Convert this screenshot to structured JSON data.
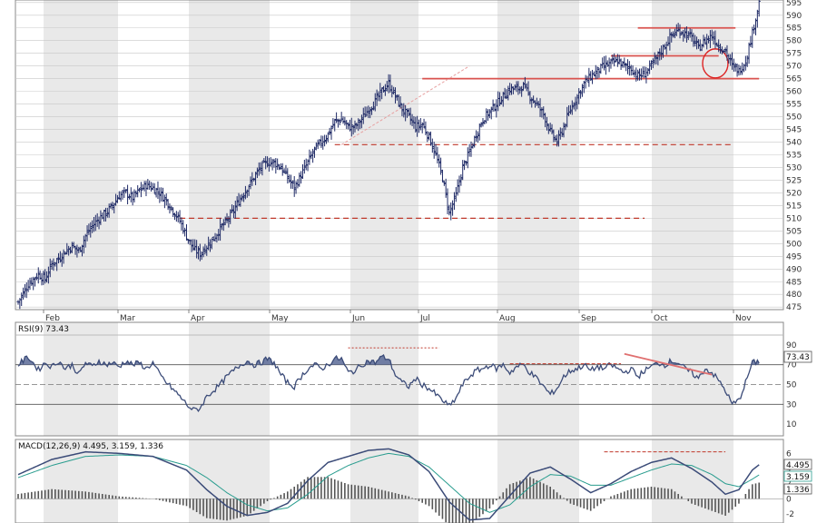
{
  "colors": {
    "bar": "#1f2a66",
    "line": "#3b4b78",
    "rsi_fill": "#5a6a96",
    "signal": "#2a9d8f",
    "level": "#d9534f",
    "dashed": "#c0392b",
    "grid": "#c8c8c8",
    "band": "#e9e9e9"
  },
  "chart_data": [
    {
      "type": "ohlc",
      "title": "",
      "x_month_labels": [
        "Feb",
        "Mar",
        "Apr",
        "May",
        "Jun",
        "Jul",
        "Aug",
        "Sep",
        "Oct",
        "Nov"
      ],
      "y_ticks": [
        475,
        480,
        485,
        490,
        495,
        500,
        505,
        510,
        515,
        520,
        525,
        530,
        535,
        540,
        545,
        550,
        555,
        560,
        565,
        570,
        575,
        580,
        585,
        590,
        595
      ],
      "ylim": [
        474,
        596
      ],
      "close_series": [
        [
          0,
          477
        ],
        [
          6,
          484
        ],
        [
          12,
          488
        ],
        [
          16,
          486
        ],
        [
          20,
          492
        ],
        [
          24,
          494
        ],
        [
          28,
          497
        ],
        [
          32,
          499
        ],
        [
          36,
          497
        ],
        [
          40,
          503
        ],
        [
          44,
          507
        ],
        [
          48,
          510
        ],
        [
          52,
          512
        ],
        [
          56,
          515
        ],
        [
          60,
          519
        ],
        [
          64,
          520
        ],
        [
          68,
          518
        ],
        [
          72,
          521
        ],
        [
          76,
          523
        ],
        [
          80,
          522
        ],
        [
          84,
          520
        ],
        [
          88,
          517
        ],
        [
          92,
          513
        ],
        [
          96,
          509
        ],
        [
          100,
          503
        ],
        [
          104,
          498
        ],
        [
          108,
          496
        ],
        [
          112,
          499
        ],
        [
          116,
          502
        ],
        [
          120,
          506
        ],
        [
          124,
          509
        ],
        [
          128,
          513
        ],
        [
          132,
          518
        ],
        [
          136,
          522
        ],
        [
          140,
          526
        ],
        [
          144,
          530
        ],
        [
          148,
          532
        ],
        [
          152,
          532
        ],
        [
          156,
          530
        ],
        [
          160,
          526
        ],
        [
          164,
          522
        ],
        [
          168,
          527
        ],
        [
          172,
          532
        ],
        [
          176,
          537
        ],
        [
          180,
          540
        ],
        [
          184,
          543
        ],
        [
          188,
          548
        ],
        [
          192,
          549
        ],
        [
          196,
          546
        ],
        [
          200,
          546
        ],
        [
          204,
          549
        ],
        [
          208,
          553
        ],
        [
          212,
          556
        ],
        [
          216,
          560
        ],
        [
          220,
          563
        ],
        [
          224,
          558
        ],
        [
          228,
          553
        ],
        [
          232,
          550
        ],
        [
          236,
          546
        ],
        [
          240,
          547
        ],
        [
          244,
          542
        ],
        [
          248,
          535
        ],
        [
          252,
          526
        ],
        [
          256,
          512
        ],
        [
          260,
          519
        ],
        [
          264,
          530
        ],
        [
          268,
          536
        ],
        [
          272,
          543
        ],
        [
          276,
          549
        ],
        [
          280,
          552
        ],
        [
          284,
          555
        ],
        [
          288,
          558
        ],
        [
          292,
          561
        ],
        [
          296,
          561
        ],
        [
          300,
          562
        ],
        [
          304,
          558
        ],
        [
          308,
          555
        ],
        [
          312,
          551
        ],
        [
          316,
          544
        ],
        [
          320,
          540
        ],
        [
          324,
          546
        ],
        [
          328,
          553
        ],
        [
          332,
          558
        ],
        [
          336,
          563
        ],
        [
          340,
          566
        ],
        [
          344,
          568
        ],
        [
          348,
          570
        ],
        [
          352,
          571
        ],
        [
          356,
          572
        ],
        [
          360,
          570
        ],
        [
          364,
          569
        ],
        [
          368,
          566
        ],
        [
          372,
          567
        ],
        [
          376,
          570
        ],
        [
          380,
          574
        ],
        [
          384,
          578
        ],
        [
          388,
          582
        ],
        [
          392,
          584
        ],
        [
          396,
          583
        ],
        [
          400,
          581
        ],
        [
          404,
          577
        ],
        [
          408,
          580
        ],
        [
          412,
          582
        ],
        [
          416,
          578
        ],
        [
          420,
          576
        ],
        [
          424,
          570
        ],
        [
          428,
          568
        ],
        [
          432,
          572
        ],
        [
          436,
          583
        ],
        [
          440,
          595
        ]
      ],
      "horizontal_levels": [
        {
          "value": 565,
          "x_range": [
            240,
            440
          ],
          "style": "solid"
        },
        {
          "value": 574,
          "x_range": [
            352,
            416
          ],
          "style": "solid"
        },
        {
          "value": 585,
          "x_range": [
            368,
            426
          ],
          "style": "solid"
        },
        {
          "value": 539,
          "x_range": [
            188,
            424
          ],
          "style": "dashed"
        },
        {
          "value": 510,
          "x_range": [
            96,
            372
          ],
          "style": "dashed"
        }
      ],
      "trendline": {
        "from": [
          192,
          539
        ],
        "to": [
          268,
          570
        ],
        "style": "dashed"
      },
      "circle_highlight": {
        "x": 414,
        "value": 571
      }
    },
    {
      "type": "line",
      "title": "RSI(9) 73.43",
      "series": [
        {
          "name": "RSI(9)",
          "last": "73.43"
        }
      ],
      "y_ticks": [
        10,
        30,
        50,
        70,
        90
      ],
      "ylim": [
        0,
        100
      ],
      "levels": [
        30,
        70
      ],
      "midline": 50,
      "value_box": "73.43",
      "values": [
        [
          0,
          70
        ],
        [
          6,
          78
        ],
        [
          12,
          65
        ],
        [
          16,
          72
        ],
        [
          20,
          68
        ],
        [
          24,
          74
        ],
        [
          28,
          66
        ],
        [
          32,
          70
        ],
        [
          36,
          60
        ],
        [
          40,
          72
        ],
        [
          44,
          68
        ],
        [
          48,
          74
        ],
        [
          52,
          70
        ],
        [
          56,
          72
        ],
        [
          60,
          68
        ],
        [
          64,
          74
        ],
        [
          68,
          70
        ],
        [
          72,
          72
        ],
        [
          76,
          66
        ],
        [
          80,
          72
        ],
        [
          84,
          60
        ],
        [
          88,
          52
        ],
        [
          92,
          45
        ],
        [
          96,
          38
        ],
        [
          100,
          30
        ],
        [
          104,
          24
        ],
        [
          108,
          26
        ],
        [
          112,
          38
        ],
        [
          116,
          44
        ],
        [
          120,
          50
        ],
        [
          124,
          58
        ],
        [
          128,
          64
        ],
        [
          132,
          70
        ],
        [
          136,
          74
        ],
        [
          140,
          70
        ],
        [
          144,
          72
        ],
        [
          148,
          76
        ],
        [
          152,
          72
        ],
        [
          156,
          60
        ],
        [
          160,
          52
        ],
        [
          164,
          48
        ],
        [
          168,
          58
        ],
        [
          172,
          66
        ],
        [
          176,
          70
        ],
        [
          180,
          66
        ],
        [
          184,
          70
        ],
        [
          188,
          76
        ],
        [
          192,
          76
        ],
        [
          196,
          62
        ],
        [
          200,
          64
        ],
        [
          204,
          70
        ],
        [
          208,
          74
        ],
        [
          212,
          72
        ],
        [
          216,
          78
        ],
        [
          220,
          76
        ],
        [
          224,
          60
        ],
        [
          228,
          52
        ],
        [
          232,
          48
        ],
        [
          236,
          56
        ],
        [
          240,
          50
        ],
        [
          244,
          46
        ],
        [
          248,
          40
        ],
        [
          252,
          34
        ],
        [
          256,
          28
        ],
        [
          260,
          36
        ],
        [
          264,
          50
        ],
        [
          268,
          58
        ],
        [
          272,
          64
        ],
        [
          276,
          66
        ],
        [
          280,
          70
        ],
        [
          284,
          66
        ],
        [
          288,
          70
        ],
        [
          292,
          62
        ],
        [
          296,
          68
        ],
        [
          300,
          70
        ],
        [
          304,
          62
        ],
        [
          308,
          56
        ],
        [
          312,
          48
        ],
        [
          316,
          40
        ],
        [
          320,
          46
        ],
        [
          324,
          58
        ],
        [
          328,
          64
        ],
        [
          332,
          66
        ],
        [
          336,
          70
        ],
        [
          340,
          64
        ],
        [
          344,
          68
        ],
        [
          348,
          66
        ],
        [
          352,
          70
        ],
        [
          356,
          66
        ],
        [
          360,
          62
        ],
        [
          364,
          66
        ],
        [
          368,
          58
        ],
        [
          372,
          64
        ],
        [
          376,
          68
        ],
        [
          380,
          72
        ],
        [
          384,
          70
        ],
        [
          388,
          74
        ],
        [
          392,
          72
        ],
        [
          396,
          66
        ],
        [
          400,
          62
        ],
        [
          404,
          56
        ],
        [
          408,
          66
        ],
        [
          412,
          62
        ],
        [
          416,
          54
        ],
        [
          420,
          44
        ],
        [
          424,
          30
        ],
        [
          428,
          34
        ],
        [
          432,
          52
        ],
        [
          436,
          72
        ],
        [
          440,
          73.43
        ]
      ],
      "annotation_lines": [
        {
          "from": [
            196,
            87
          ],
          "to": [
            250,
            87
          ],
          "style": "dashed"
        },
        {
          "from": [
            292,
            71
          ],
          "to": [
            358,
            71
          ],
          "style": "dashed"
        },
        {
          "from": [
            360,
            81
          ],
          "to": [
            412,
            60
          ],
          "style": "solid"
        }
      ]
    },
    {
      "type": "line",
      "title": "MACD(12,26,9) 4.495, 3.159, 1.336",
      "series": [
        {
          "name": "MACD(12,26,9)",
          "last": "4.495"
        },
        {
          "name": "Signal",
          "last": "3.159"
        },
        {
          "name": "Histogram",
          "last": "1.336"
        }
      ],
      "y_ticks": [
        -2,
        0,
        2,
        4,
        6
      ],
      "ylim": [
        -3.2,
        7.6
      ],
      "value_boxes": [
        "4.495",
        "3.159",
        "1.336"
      ],
      "macd": [
        [
          0,
          3.2
        ],
        [
          20,
          5.2
        ],
        [
          40,
          6.2
        ],
        [
          60,
          6.0
        ],
        [
          80,
          5.6
        ],
        [
          100,
          3.8
        ],
        [
          112,
          1.2
        ],
        [
          124,
          -1.0
        ],
        [
          136,
          -2.2
        ],
        [
          148,
          -1.8
        ],
        [
          160,
          -0.6
        ],
        [
          172,
          2.4
        ],
        [
          184,
          4.8
        ],
        [
          196,
          5.6
        ],
        [
          208,
          6.4
        ],
        [
          220,
          6.6
        ],
        [
          232,
          5.8
        ],
        [
          244,
          3.6
        ],
        [
          256,
          -0.4
        ],
        [
          268,
          -2.8
        ],
        [
          280,
          -2.6
        ],
        [
          292,
          0.4
        ],
        [
          304,
          3.4
        ],
        [
          316,
          4.2
        ],
        [
          328,
          2.6
        ],
        [
          340,
          0.8
        ],
        [
          352,
          2.0
        ],
        [
          364,
          3.6
        ],
        [
          376,
          4.8
        ],
        [
          388,
          5.4
        ],
        [
          400,
          4.0
        ],
        [
          412,
          2.2
        ],
        [
          420,
          0.6
        ],
        [
          428,
          1.2
        ],
        [
          436,
          3.8
        ],
        [
          440,
          4.495
        ]
      ],
      "signal": [
        [
          0,
          2.8
        ],
        [
          20,
          4.4
        ],
        [
          40,
          5.6
        ],
        [
          60,
          5.8
        ],
        [
          80,
          5.6
        ],
        [
          100,
          4.4
        ],
        [
          112,
          2.8
        ],
        [
          124,
          0.8
        ],
        [
          136,
          -0.8
        ],
        [
          148,
          -1.6
        ],
        [
          160,
          -1.2
        ],
        [
          172,
          0.6
        ],
        [
          184,
          3.0
        ],
        [
          196,
          4.4
        ],
        [
          208,
          5.4
        ],
        [
          220,
          6.0
        ],
        [
          232,
          5.6
        ],
        [
          244,
          4.2
        ],
        [
          256,
          1.8
        ],
        [
          268,
          -0.6
        ],
        [
          280,
          -1.8
        ],
        [
          292,
          -0.8
        ],
        [
          304,
          1.6
        ],
        [
          316,
          3.2
        ],
        [
          328,
          3.0
        ],
        [
          340,
          1.8
        ],
        [
          352,
          1.8
        ],
        [
          364,
          2.8
        ],
        [
          376,
          3.8
        ],
        [
          388,
          4.6
        ],
        [
          400,
          4.4
        ],
        [
          412,
          3.2
        ],
        [
          420,
          2.0
        ],
        [
          428,
          1.6
        ],
        [
          436,
          2.6
        ],
        [
          440,
          3.159
        ]
      ],
      "annotation_line": {
        "from": [
          348,
          6.2
        ],
        "to": [
          420,
          6.2
        ],
        "style": "dashed"
      }
    }
  ]
}
